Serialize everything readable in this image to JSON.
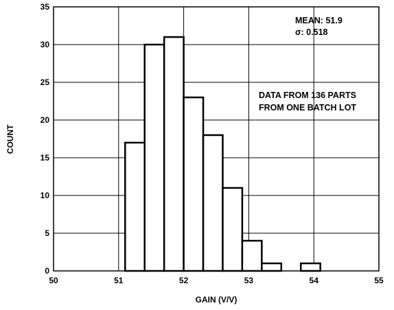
{
  "chart_data": {
    "type": "bar",
    "subtype": "histogram",
    "xlabel": "GAIN (V/V)",
    "ylabel": "COUNT",
    "xlim": [
      50,
      55
    ],
    "ylim": [
      0,
      35
    ],
    "xticks": [
      "50",
      "51",
      "52",
      "53",
      "54",
      "55"
    ],
    "yticks": [
      "0",
      "5",
      "10",
      "15",
      "20",
      "25",
      "30",
      "35"
    ],
    "grid": true,
    "bins": [
      {
        "x0": 51.1,
        "x1": 51.4,
        "count": 17
      },
      {
        "x0": 51.4,
        "x1": 51.7,
        "count": 30
      },
      {
        "x0": 51.7,
        "x1": 52.0,
        "count": 31
      },
      {
        "x0": 52.0,
        "x1": 52.3,
        "count": 23
      },
      {
        "x0": 52.3,
        "x1": 52.6,
        "count": 18
      },
      {
        "x0": 52.6,
        "x1": 52.9,
        "count": 11
      },
      {
        "x0": 52.9,
        "x1": 53.2,
        "count": 4
      },
      {
        "x0": 53.2,
        "x1": 53.5,
        "count": 1
      },
      {
        "x0": 53.8,
        "x1": 54.1,
        "count": 1
      }
    ],
    "annotations": {
      "mean": "MEAN: 51.9",
      "sigma": "σ: 0.518",
      "note_line1": "DATA FROM 136 PARTS",
      "note_line2": "FROM ONE BATCH LOT"
    }
  }
}
